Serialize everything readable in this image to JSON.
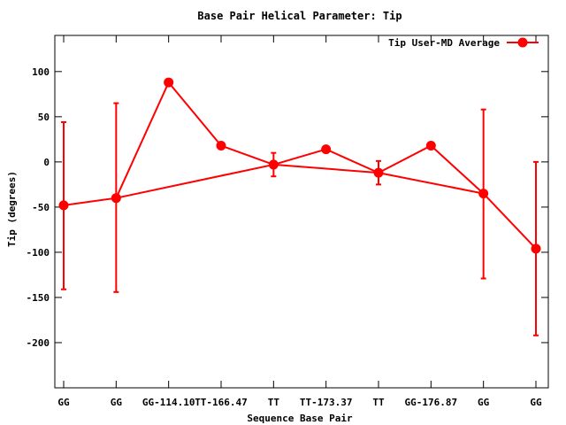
{
  "chart_data": {
    "type": "line",
    "title": "Base Pair Helical Parameter: Tip",
    "xlabel": "Sequence Base Pair",
    "ylabel": "Tip (degrees)",
    "ylim": [
      -250,
      140
    ],
    "yticks": [
      100,
      50,
      0,
      -50,
      -100,
      -150,
      -200
    ],
    "categories": [
      "GG",
      "GG",
      "GG-114.10",
      "TT-166.47",
      "TT",
      "TT-173.37",
      "TT",
      "GG-176.87",
      "GG",
      "GG"
    ],
    "series": [
      {
        "name": "Tip User-MD Average",
        "color": "#ff0000",
        "points": [
          {
            "cat": 0,
            "y": -48,
            "err_low": -141,
            "err_high": 44
          },
          {
            "cat": 1,
            "y": -40,
            "err_low": -144,
            "err_high": 65
          },
          {
            "cat": 2,
            "y": 88,
            "err_low": null,
            "err_high": null
          },
          {
            "cat": 3,
            "y": 18,
            "err_low": null,
            "err_high": null
          },
          {
            "cat": 4,
            "y": -3,
            "err_low": -16,
            "err_high": 10
          },
          {
            "cat": 5,
            "y": 14,
            "err_low": null,
            "err_high": null
          },
          {
            "cat": 6,
            "y": -12,
            "err_low": -25,
            "err_high": 1
          },
          {
            "cat": 7,
            "y": 18,
            "err_low": null,
            "err_high": null
          },
          {
            "cat": 8,
            "y": -35,
            "err_low": -129,
            "err_high": 58
          },
          {
            "cat": 9,
            "y": -96,
            "err_low": -192,
            "err_high": 0
          }
        ],
        "line_order": [
          0,
          1,
          2,
          3,
          4,
          5,
          6,
          7,
          8,
          9
        ],
        "extra_segments": [
          [
            1,
            4
          ],
          [
            4,
            6
          ],
          [
            6,
            8
          ]
        ]
      }
    ],
    "legend": "top-right",
    "grid": false
  }
}
